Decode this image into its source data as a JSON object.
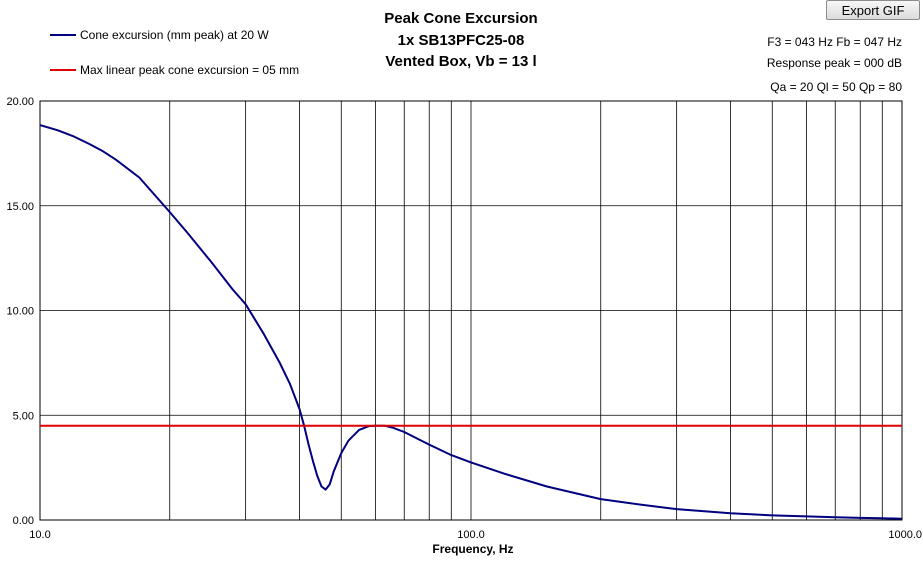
{
  "toolbar": {
    "export_label": "Export GIF"
  },
  "chart_data": {
    "type": "line",
    "title": [
      "Peak Cone Excursion",
      "1x SB13PFC25-08",
      "Vented Box, Vb = 13 l"
    ],
    "xlabel": "Frequency, Hz",
    "ylabel": "",
    "xscale": "log",
    "xlim": [
      10,
      1000
    ],
    "ylim": [
      0,
      20
    ],
    "grid": true,
    "legend_placement": "top-left",
    "x_tick_labels": [
      "10.0",
      "100.0",
      "1000.0"
    ],
    "y_tick_labels": [
      "0.00",
      "5.00",
      "10.00",
      "15.00",
      "20.00"
    ],
    "info_lines": [
      "F3 = 043 Hz  Fb = 047 Hz",
      "Response peak = 000 dB",
      "Qa = 20  Ql = 50  Qp = 80"
    ],
    "series": [
      {
        "name": "Cone excursion (mm peak) at 20 W",
        "color": "#000080",
        "x": [
          10,
          11,
          12,
          13,
          14,
          15,
          17,
          20,
          22,
          25,
          28,
          30,
          33,
          36,
          38,
          40,
          41,
          42,
          43,
          44,
          45,
          46,
          47,
          48,
          50,
          52,
          55,
          58,
          60,
          63,
          66,
          70,
          80,
          90,
          100,
          120,
          150,
          200,
          250,
          300,
          400,
          500,
          600,
          700,
          800,
          900,
          1000
        ],
        "values": [
          18.85,
          18.6,
          18.3,
          17.95,
          17.6,
          17.2,
          16.35,
          14.7,
          13.7,
          12.3,
          11.0,
          10.3,
          8.9,
          7.5,
          6.5,
          5.3,
          4.5,
          3.6,
          2.8,
          2.1,
          1.6,
          1.45,
          1.7,
          2.3,
          3.2,
          3.8,
          4.3,
          4.48,
          4.5,
          4.5,
          4.4,
          4.2,
          3.6,
          3.1,
          2.75,
          2.2,
          1.6,
          1.0,
          0.72,
          0.52,
          0.32,
          0.22,
          0.17,
          0.13,
          0.1,
          0.08,
          0.06
        ]
      },
      {
        "name": "Max linear peak cone excursion = 05 mm",
        "color": "#e00000",
        "x": [
          10,
          1000
        ],
        "values": [
          4.5,
          4.5
        ]
      }
    ]
  }
}
